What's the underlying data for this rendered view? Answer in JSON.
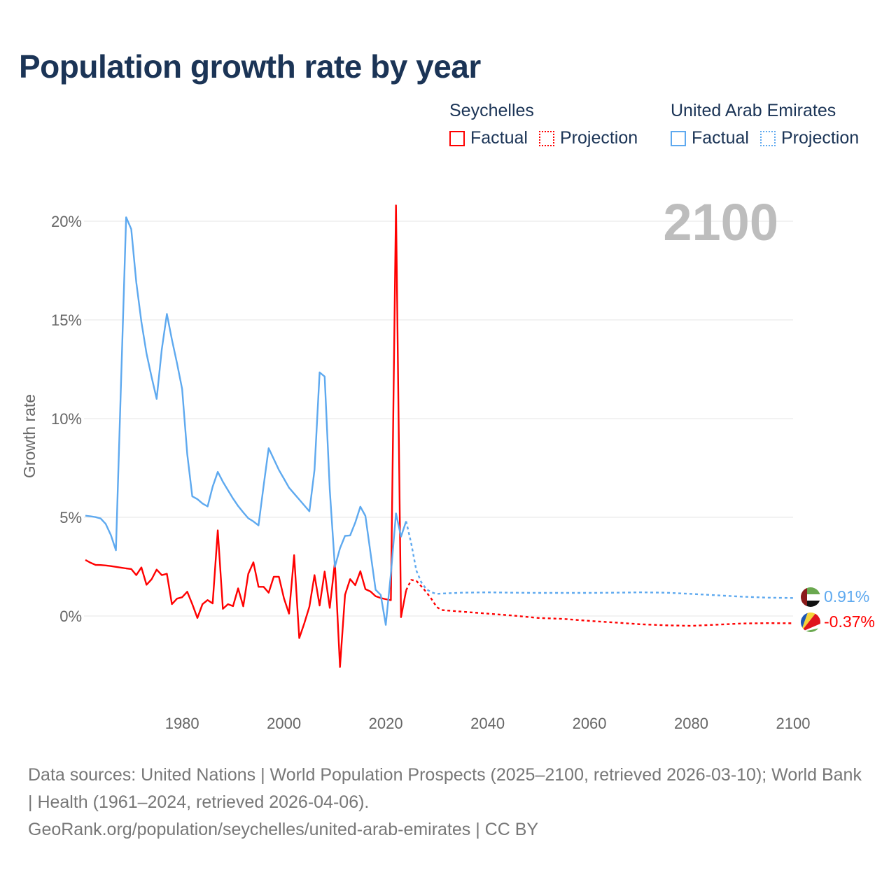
{
  "title": "Population growth rate by year",
  "legend": {
    "groups": [
      {
        "name": "Seychelles",
        "color": "#ff0000",
        "factual_label": "Factual",
        "projection_label": "Projection"
      },
      {
        "name": "United Arab Emirates",
        "color": "#5ea9ef",
        "factual_label": "Factual",
        "projection_label": "Projection"
      }
    ]
  },
  "year_label": "2100",
  "end_labels": {
    "uae": "0.91%",
    "seychelles": "-0.37%"
  },
  "footer": {
    "sources": "Data sources: United Nations | World Population Prospects (2025–2100, retrieved 2026-03-10); World Bank | Health (1961–2024, retrieved 2026-04-06).",
    "link": "GeoRank.org/population/seychelles/united-arab-emirates | CC BY"
  },
  "chart_data": {
    "type": "line",
    "title": "Population growth rate by year",
    "xlabel": "",
    "ylabel": "Growth rate",
    "xlim": [
      1961,
      2100
    ],
    "ylim": [
      -4.5,
      21.5
    ],
    "x_ticks": [
      1980,
      2000,
      2020,
      2040,
      2060,
      2080,
      2100
    ],
    "x_tick_labels": [
      "1980",
      "2000",
      "2020",
      "2040",
      "2060",
      "2080",
      "2100"
    ],
    "y_ticks": [
      0,
      5,
      10,
      15,
      20
    ],
    "y_tick_labels": [
      "0%",
      "5%",
      "10%",
      "15%",
      "20%"
    ],
    "grid": true,
    "legend_position": "top-right",
    "series": [
      {
        "name": "Seychelles Factual",
        "color": "#ff0000",
        "dash": false,
        "x": [
          1961,
          1962,
          1963,
          1964,
          1965,
          1966,
          1967,
          1968,
          1969,
          1970,
          1971,
          1972,
          1973,
          1974,
          1975,
          1976,
          1977,
          1978,
          1979,
          1980,
          1981,
          1982,
          1983,
          1984,
          1985,
          1986,
          1987,
          1988,
          1989,
          1990,
          1991,
          1992,
          1993,
          1994,
          1995,
          1996,
          1997,
          1998,
          1999,
          2000,
          2001,
          2002,
          2003,
          2004,
          2005,
          2006,
          2007,
          2008,
          2009,
          2010,
          2011,
          2012,
          2013,
          2014,
          2015,
          2016,
          2017,
          2018,
          2019,
          2020,
          2021,
          2022,
          2023,
          2024
        ],
        "values": [
          2.84,
          2.7,
          2.59,
          2.58,
          2.56,
          2.53,
          2.49,
          2.45,
          2.41,
          2.38,
          2.07,
          2.46,
          1.58,
          1.86,
          2.35,
          2.07,
          2.14,
          0.6,
          0.88,
          0.95,
          1.23,
          0.6,
          -0.1,
          0.6,
          0.81,
          0.64,
          4.34,
          0.36,
          0.6,
          0.5,
          1.4,
          0.49,
          2.14,
          2.72,
          1.48,
          1.48,
          1.18,
          1.99,
          1.99,
          0.89,
          0.12,
          3.08,
          -1.12,
          -0.36,
          0.47,
          2.07,
          0.53,
          2.25,
          0.41,
          2.72,
          -2.58,
          1.07,
          1.87,
          1.56,
          2.27,
          1.36,
          1.24,
          1.0,
          0.91,
          0.85,
          0.8,
          20.8,
          -0.06,
          1.3
        ]
      },
      {
        "name": "Seychelles Projection",
        "color": "#ff0000",
        "dash": true,
        "x": [
          2024,
          2025,
          2026,
          2027,
          2028,
          2029,
          2030,
          2031,
          2035,
          2040,
          2045,
          2050,
          2055,
          2060,
          2065,
          2070,
          2075,
          2080,
          2085,
          2090,
          2095,
          2100
        ],
        "values": [
          1.3,
          1.83,
          1.78,
          1.5,
          1.2,
          0.85,
          0.45,
          0.3,
          0.22,
          0.12,
          0.02,
          -0.1,
          -0.15,
          -0.25,
          -0.33,
          -0.42,
          -0.47,
          -0.5,
          -0.44,
          -0.38,
          -0.36,
          -0.37
        ]
      },
      {
        "name": "United Arab Emirates Factual",
        "color": "#5ea9ef",
        "dash": false,
        "x": [
          1961,
          1962,
          1963,
          1964,
          1965,
          1966,
          1967,
          1968,
          1969,
          1970,
          1971,
          1972,
          1973,
          1974,
          1975,
          1976,
          1977,
          1978,
          1979,
          1980,
          1981,
          1982,
          1983,
          1984,
          1985,
          1986,
          1987,
          1988,
          1989,
          1990,
          1991,
          1992,
          1993,
          1994,
          1995,
          1996,
          1997,
          1998,
          1999,
          2000,
          2001,
          2002,
          2003,
          2004,
          2005,
          2006,
          2007,
          2008,
          2009,
          2010,
          2011,
          2012,
          2013,
          2014,
          2015,
          2016,
          2017,
          2018,
          2019,
          2020,
          2021,
          2022,
          2023,
          2024
        ],
        "values": [
          5.08,
          5.05,
          5.01,
          4.94,
          4.66,
          4.1,
          3.33,
          11.8,
          20.2,
          19.6,
          16.9,
          14.9,
          13.3,
          12.1,
          11.0,
          13.5,
          15.3,
          14.0,
          12.8,
          11.5,
          8.2,
          6.06,
          5.92,
          5.7,
          5.55,
          6.55,
          7.3,
          6.8,
          6.37,
          5.95,
          5.57,
          5.25,
          4.95,
          4.79,
          4.59,
          6.6,
          8.5,
          7.95,
          7.4,
          6.95,
          6.5,
          6.2,
          5.9,
          5.6,
          5.3,
          7.4,
          12.34,
          12.13,
          6.4,
          2.49,
          3.43,
          4.06,
          4.08,
          4.73,
          5.54,
          5.07,
          3.2,
          1.33,
          1.07,
          -0.45,
          2.13,
          5.2,
          4.02,
          4.8
        ]
      },
      {
        "name": "United Arab Emirates Projection",
        "color": "#5ea9ef",
        "dash": true,
        "x": [
          2024,
          2025,
          2026,
          2027,
          2028,
          2029,
          2030,
          2031,
          2035,
          2040,
          2045,
          2050,
          2055,
          2060,
          2065,
          2070,
          2075,
          2080,
          2085,
          2090,
          2095,
          2100
        ],
        "values": [
          4.8,
          3.67,
          2.3,
          1.7,
          1.35,
          1.2,
          1.12,
          1.14,
          1.18,
          1.2,
          1.18,
          1.17,
          1.17,
          1.17,
          1.18,
          1.2,
          1.18,
          1.12,
          1.05,
          0.98,
          0.93,
          0.91
        ]
      }
    ]
  }
}
